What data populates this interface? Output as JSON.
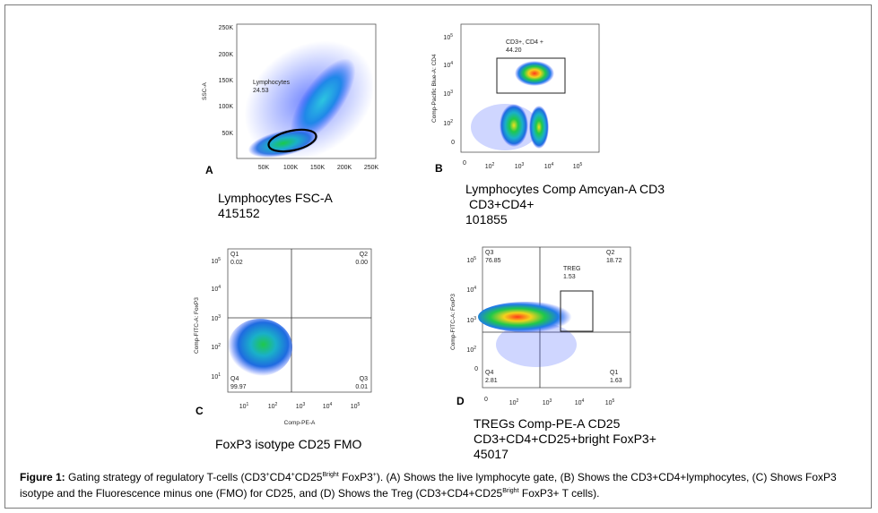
{
  "panels": {
    "a": {
      "letter": "A",
      "y_label": "SSC-A",
      "x_ticks": [
        "50K",
        "100K",
        "150K",
        "200K",
        "250K"
      ],
      "y_ticks": [
        "250K",
        "200K",
        "150K",
        "100K",
        "50K"
      ],
      "gate": {
        "name": "Lymphocytes",
        "value": "24.53"
      },
      "caption": {
        "line1": "Lymphocytes FSC-A",
        "line2": "415152"
      }
    },
    "b": {
      "letter": "B",
      "y_label": "Comp-Pacific Blue-A: CD4",
      "x_ticks": [
        "0",
        "10",
        "10",
        "10",
        "10"
      ],
      "x_exps": [
        "",
        "2",
        "3",
        "4",
        "5"
      ],
      "y_ticks": [
        "10",
        "10",
        "10",
        "10",
        "0"
      ],
      "y_exps": [
        "5",
        "4",
        "3",
        "2",
        ""
      ],
      "gate": {
        "name": "CD3+, CD4 +",
        "value": "44.20"
      },
      "caption": {
        "line1": "Lymphocytes Comp Amcyan-A CD3",
        "line2": "CD3+CD4+",
        "line3": "101855"
      }
    },
    "c": {
      "letter": "C",
      "x_label": "Comp-PE-A",
      "y_label": "Comp-FITC-A: FoxP3",
      "x_ticks": [
        "10",
        "10",
        "10",
        "10",
        "10"
      ],
      "x_exps": [
        "1",
        "2",
        "3",
        "4",
        "5"
      ],
      "y_ticks": [
        "10",
        "10",
        "10",
        "10",
        "10"
      ],
      "y_exps": [
        "5",
        "4",
        "3",
        "2",
        "1"
      ],
      "quadrants": {
        "q1": {
          "name": "Q1",
          "value": "0.02"
        },
        "q2": {
          "name": "Q2",
          "value": "0.00"
        },
        "q3": {
          "name": "Q3",
          "value": "0.01"
        },
        "q4": {
          "name": "Q4",
          "value": "99.97"
        }
      },
      "caption": {
        "line1": "FoxP3 isotype CD25 FMO"
      }
    },
    "d": {
      "letter": "D",
      "y_label": "Comp-FITC-A: FoxP3",
      "x_ticks": [
        "0",
        "10",
        "10",
        "10",
        "10"
      ],
      "x_exps": [
        "",
        "2",
        "3",
        "4",
        "5"
      ],
      "y_ticks": [
        "10",
        "10",
        "10",
        "10",
        "0"
      ],
      "y_exps": [
        "5",
        "4",
        "3",
        "2",
        ""
      ],
      "quadrants": {
        "q3": {
          "name": "Q3",
          "value": "76.85"
        },
        "q2": {
          "name": "Q2",
          "value": "18.72"
        },
        "q4": {
          "name": "Q4",
          "value": "2.81"
        },
        "q1": {
          "name": "Q1",
          "value": "1.63"
        }
      },
      "gate": {
        "name": "TREG",
        "value": "1.53"
      },
      "caption": {
        "line1": "TREGs Comp-PE-A CD25",
        "line2": "CD3+CD4+CD25+bright FoxP3+",
        "line3": "45017"
      }
    }
  },
  "figure_caption": {
    "label": "Figure 1:",
    "t1": " Gating strategy of regulatory T-cells (CD3",
    "s1": "+",
    "t2": "CD4",
    "s2": "+",
    "t3": "CD25",
    "s3": "Bright",
    "t4": " FoxP3",
    "s4": "+",
    "t5": "). (A) Shows the live lymphocyte gate, (B) Shows the CD3+CD4+lymphocytes, (C) Shows FoxP3 isotype and the Fluorescence minus one (FMO) for CD25, and (D) Shows the Treg (CD3+CD4+CD25",
    "s5": "Bright",
    "t6": " FoxP3+ T cells)."
  },
  "colors": {
    "axis": "#333333",
    "gate": "#000000",
    "gate_box": "#222222"
  }
}
